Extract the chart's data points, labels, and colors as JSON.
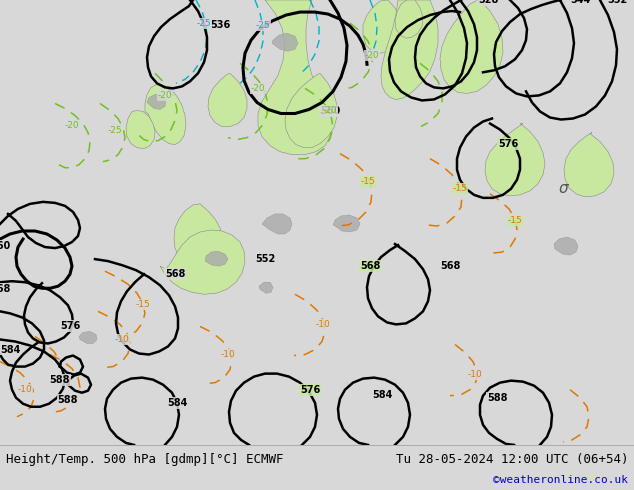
{
  "title_left": "Height/Temp. 500 hPa [gdmp][°C] ECMWF",
  "title_right": "Tu 28-05-2024 12:00 UTC (06+54)",
  "credit": "©weatheronline.co.uk",
  "sea_color": "#d8d8d8",
  "land_color": "#c8e8a0",
  "mountain_color": "#aaaaaa",
  "bottom_bar_color": "#ffffff",
  "title_fontsize": 9,
  "credit_color": "#0000cc",
  "figsize": [
    6.34,
    4.9
  ],
  "dpi": 100
}
